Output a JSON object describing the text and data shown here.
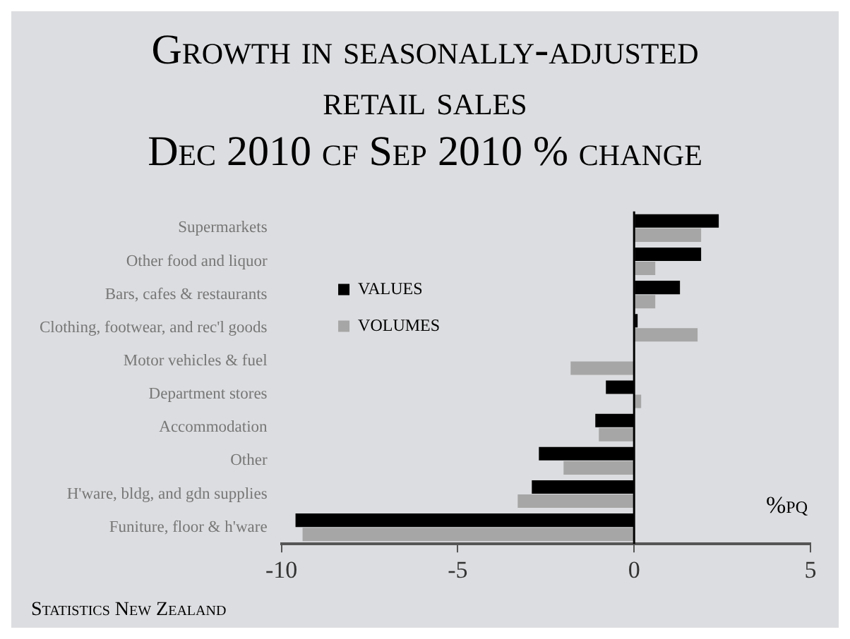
{
  "chart_data": {
    "type": "bar",
    "orientation": "horizontal",
    "title": "Growth in seasonally-adjusted retail sales",
    "subtitle": "Dec 2010 cf Sep 2010 % change",
    "categories": [
      "Supermarkets",
      "Other food and liquor",
      "Bars, cafes & restaurants",
      "Clothing, footwear, and rec'l goods",
      "Motor vehicles & fuel",
      "Department stores",
      "Accommodation",
      "Other",
      "H'ware, bldg, and gdn supplies",
      "Funiture, floor & h'ware"
    ],
    "series": [
      {
        "name": "VALUES",
        "color": "#000000",
        "values": [
          2.4,
          1.9,
          1.3,
          0.1,
          0.0,
          -0.8,
          -1.1,
          -2.7,
          -2.9,
          -9.6
        ]
      },
      {
        "name": "VOLUMES",
        "color": "#a6a6a6",
        "values": [
          1.9,
          0.6,
          0.6,
          1.8,
          -1.8,
          0.2,
          -1.0,
          -2.0,
          -3.3,
          -9.4
        ]
      }
    ],
    "xlim": [
      -10,
      5
    ],
    "xticks": [
      -10,
      -5,
      0,
      5
    ],
    "grid": false,
    "legend": "top left",
    "ref_lines": [
      {
        "axis": "x",
        "value": 0,
        "color": "#000000"
      }
    ],
    "annotations": [
      "%pq",
      "Statistics New Zealand"
    ]
  }
}
